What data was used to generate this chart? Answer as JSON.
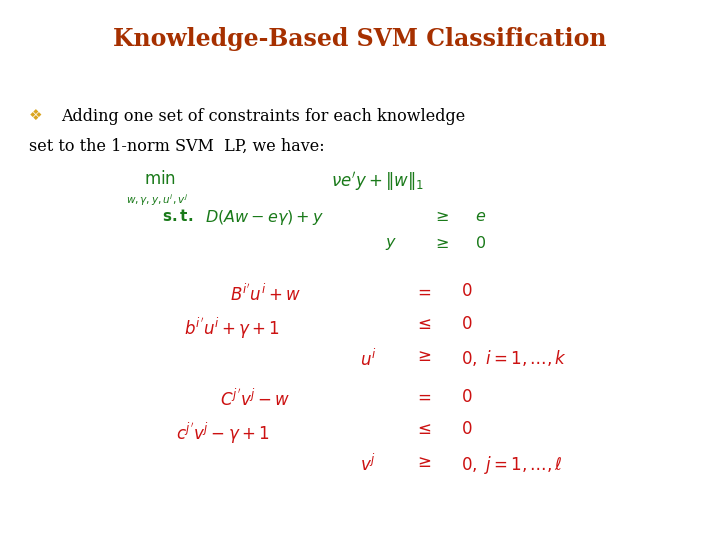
{
  "title": "Knowledge-Based SVM Classification",
  "title_color": "#A63000",
  "title_fontsize": 17,
  "bg_color": "#FFFFFF",
  "bullet_color": "#DAA520",
  "body_text_color": "#000000",
  "body_fontsize": 11.5,
  "green_color": "#1A7A1A",
  "red_color": "#CC1111"
}
